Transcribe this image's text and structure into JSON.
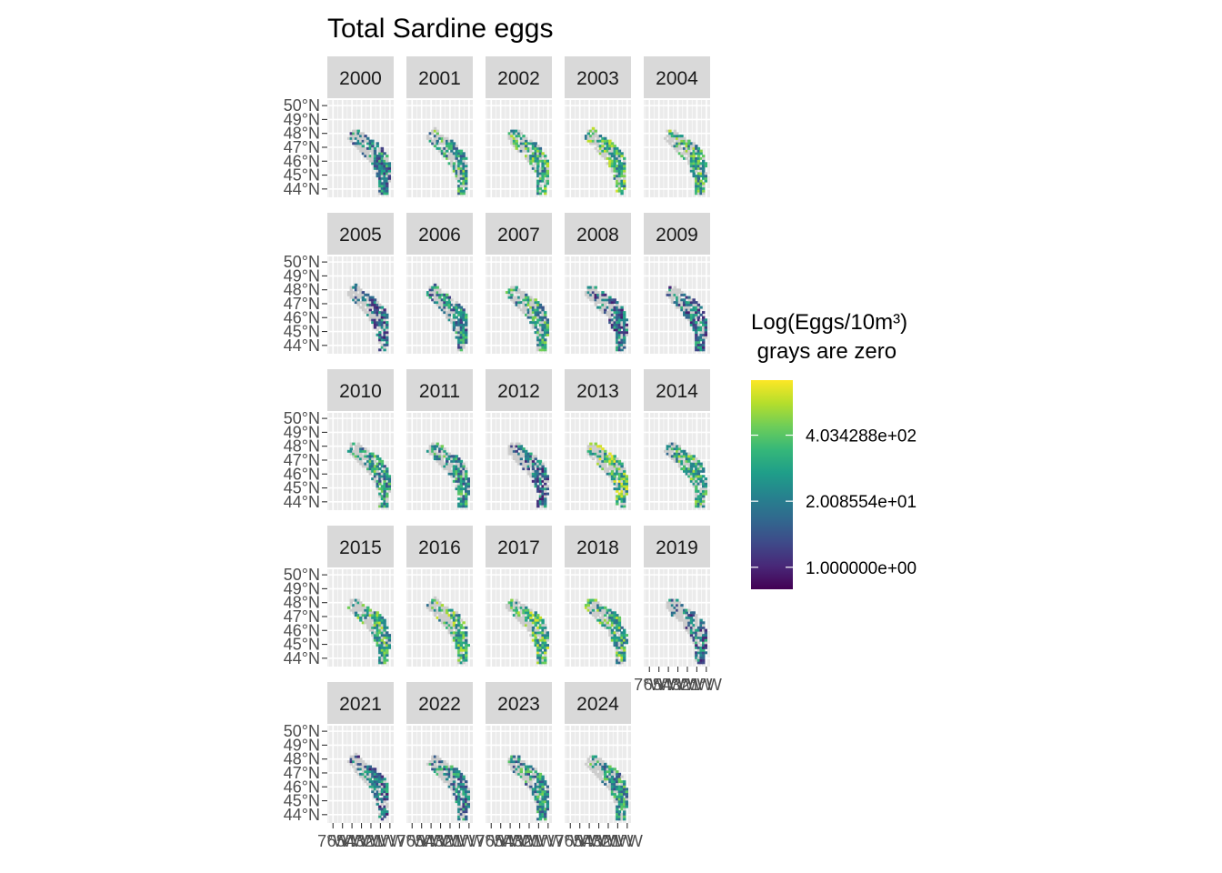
{
  "chart_data": {
    "type": "heatmap",
    "title": "Total Sardine eggs",
    "facet_labels": [
      "2000",
      "2001",
      "2002",
      "2003",
      "2004",
      "2005",
      "2006",
      "2007",
      "2008",
      "2009",
      "2010",
      "2011",
      "2012",
      "2013",
      "2014",
      "2015",
      "2016",
      "2017",
      "2018",
      "2019",
      "2021",
      "2022",
      "2023",
      "2024"
    ],
    "y_ticks": [
      "50°N",
      "49°N",
      "48°N",
      "47°N",
      "46°N",
      "45°N",
      "44°N"
    ],
    "y_tick_values": [
      50,
      49,
      48,
      47,
      46,
      45,
      44
    ],
    "x_ticks": [
      "7°W",
      "6°W",
      "5°W",
      "4°W",
      "3°W",
      "2°W",
      "1°W"
    ],
    "x_tick_values": [
      -7,
      -6,
      -5,
      -4,
      -3,
      -2,
      -1
    ],
    "xlim": [
      -7.6,
      -0.6
    ],
    "ylim": [
      43.4,
      50.4
    ],
    "legend": {
      "title_line1": "Log(Eggs/10m³)",
      "title_line2": " grays are zero",
      "labels": [
        "4.034288e+02",
        "2.008554e+01",
        "1.000000e+00"
      ],
      "label_log_values": [
        6,
        3,
        0
      ],
      "range": [
        -1,
        8.5
      ],
      "colors": [
        "#440154",
        "#482878",
        "#3E4A89",
        "#31688E",
        "#26828E",
        "#1F9E89",
        "#35B779",
        "#6DCD59",
        "#B4DE2C",
        "#FDE725"
      ]
    },
    "zero_color": "#CCCCCC",
    "grid": true,
    "legend_position": "right"
  }
}
